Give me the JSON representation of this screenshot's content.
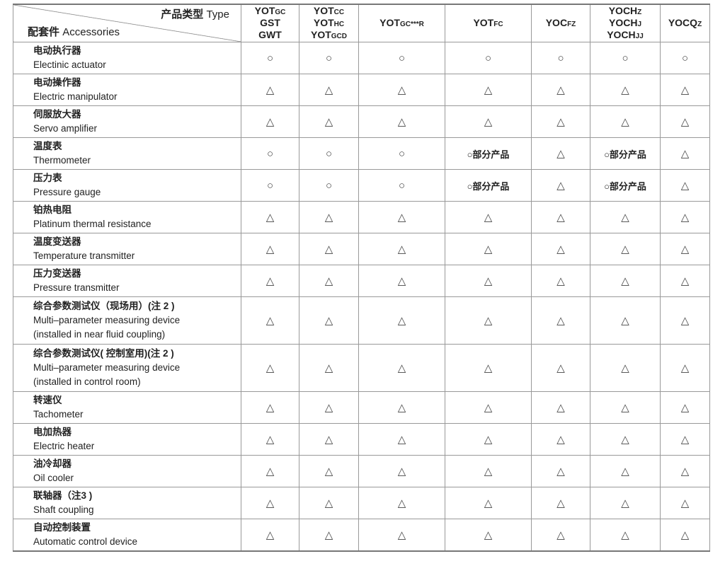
{
  "header": {
    "type_cn": "产品类型",
    "type_en": "Type",
    "acc_cn": "配套件",
    "acc_en": "Accessories",
    "columns": [
      [
        "YOT",
        "GC",
        "GST",
        "",
        "GWT",
        ""
      ],
      [
        "YOT",
        "CC",
        "YOT",
        "HC",
        "YOT",
        "GCD"
      ],
      [
        "YOT",
        "GC***R",
        "",
        "",
        "",
        ""
      ],
      [
        "YOT",
        "FC",
        "",
        "",
        "",
        ""
      ],
      [
        "YOC",
        "FZ",
        "",
        "",
        "",
        ""
      ],
      [
        "YOCH",
        "Z",
        "YOCH",
        "J",
        "YOCH",
        "JJ"
      ],
      [
        "YOCQ",
        "Z",
        "",
        "",
        "",
        ""
      ]
    ]
  },
  "rows": [
    {
      "cn": "电动执行器",
      "en": [
        "Electinic actuator"
      ],
      "v": [
        "○",
        "○",
        "○",
        "○",
        "○",
        "○",
        "○"
      ]
    },
    {
      "cn": "电动操作器",
      "en": [
        "Electric manipulator"
      ],
      "v": [
        "△",
        "△",
        "△",
        "△",
        "△",
        "△",
        "△"
      ]
    },
    {
      "cn": "伺服放大器",
      "en": [
        "Servo amplifier"
      ],
      "v": [
        "△",
        "△",
        "△",
        "△",
        "△",
        "△",
        "△"
      ]
    },
    {
      "cn": "温度表",
      "en": [
        "Thermometer"
      ],
      "v": [
        "○",
        "○",
        "○",
        "○部分产品",
        "△",
        "○部分产品",
        "△"
      ]
    },
    {
      "cn": "压力表",
      "en": [
        "Pressure gauge"
      ],
      "v": [
        "○",
        "○",
        "○",
        "○部分产品",
        "△",
        "○部分产品",
        "△"
      ]
    },
    {
      "cn": "铂热电阻",
      "en": [
        "Platinum thermal resistance"
      ],
      "v": [
        "△",
        "△",
        "△",
        "△",
        "△",
        "△",
        "△"
      ]
    },
    {
      "cn": "温度变送器",
      "en": [
        "Temperature transmitter"
      ],
      "v": [
        "△",
        "△",
        "△",
        "△",
        "△",
        "△",
        "△"
      ]
    },
    {
      "cn": "压力变送器",
      "en": [
        "Pressure transmitter"
      ],
      "v": [
        "△",
        "△",
        "△",
        "△",
        "△",
        "△",
        "△"
      ]
    },
    {
      "cn": "综合参数测试仪（现场用）(注 2 )",
      "en": [
        "Multi–parameter measuring device",
        "(installed in near fluid coupling)"
      ],
      "v": [
        "△",
        "△",
        "△",
        "△",
        "△",
        "△",
        "△"
      ]
    },
    {
      "cn": "综合参数测试仪( 控制室用)(注 2 )",
      "en": [
        "Multi–parameter measuring device",
        "(installed in control room)"
      ],
      "v": [
        "△",
        "△",
        "△",
        "△",
        "△",
        "△",
        "△"
      ]
    },
    {
      "cn": "转速仪",
      "en": [
        "Tachometer"
      ],
      "v": [
        "△",
        "△",
        "△",
        "△",
        "△",
        "△",
        "△"
      ]
    },
    {
      "cn": "电加热器",
      "en": [
        "Electric heater"
      ],
      "v": [
        "△",
        "△",
        "△",
        "△",
        "△",
        "△",
        "△"
      ]
    },
    {
      "cn": "油冷却器",
      "en": [
        "Oil cooler"
      ],
      "v": [
        "△",
        "△",
        "△",
        "△",
        "△",
        "△",
        "△"
      ]
    },
    {
      "cn": "联轴器（注3 )",
      "en": [
        "Shaft coupling"
      ],
      "v": [
        "△",
        "△",
        "△",
        "△",
        "△",
        "△",
        "△"
      ]
    },
    {
      "cn": "自动控制装置",
      "en": [
        "Automatic control device"
      ],
      "v": [
        "△",
        "△",
        "△",
        "△",
        "△",
        "△",
        "△"
      ]
    }
  ]
}
